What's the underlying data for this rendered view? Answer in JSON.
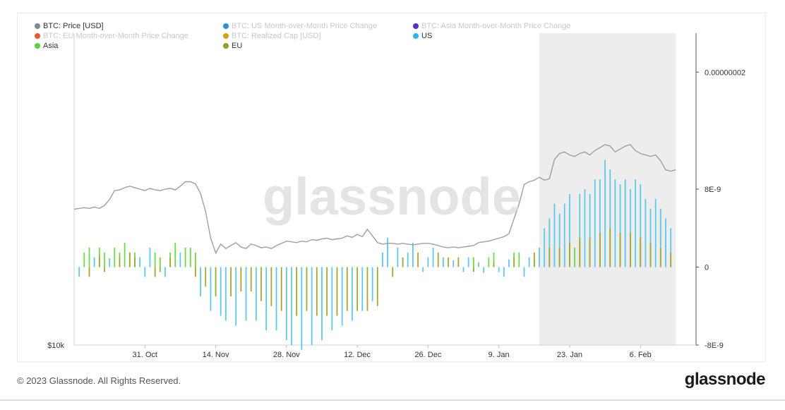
{
  "legend": [
    {
      "label": "BTC: Price [USD]",
      "color": "#7f8c8d",
      "active": true
    },
    {
      "label": "BTC: US Month-over-Month Price Change",
      "color": "#2f8fd8",
      "active": false
    },
    {
      "label": "BTC: Asia Month-over-Month Price Change",
      "color": "#4b2fcf",
      "active": false
    },
    {
      "label": "BTC: EU Month-over-Month Price Change",
      "color": "#e8562a",
      "active": false
    },
    {
      "label": "BTC: Realized Cap [USD]",
      "color": "#d4a017",
      "active": false
    },
    {
      "label": "US",
      "color": "#29b6e8",
      "active": true
    },
    {
      "label": "Asia",
      "color": "#5bd23a",
      "active": true
    },
    {
      "label": "EU",
      "color": "#8aa61c",
      "active": true
    }
  ],
  "watermark": "glassnode",
  "footer": {
    "copyright": "© 2023 Glassnode. All Rights Reserved.",
    "logo": "glassnode"
  },
  "colors": {
    "price": "#9aa0a4",
    "us": "#5ec8ec",
    "asia": "#6fd94a",
    "eu": "#a3a82e",
    "shade": "#ededed"
  },
  "chart_data": {
    "type": "bar",
    "x_tick_labels": [
      "31. Oct",
      "14. Nov",
      "28. Nov",
      "12. Dec",
      "26. Dec",
      "9. Jan",
      "23. Jan",
      "6. Feb"
    ],
    "x_ticks": [
      14,
      28,
      42,
      56,
      70,
      84,
      98,
      112
    ],
    "x_range": [
      0,
      123
    ],
    "left_axis": {
      "labels": [
        "$10k"
      ]
    },
    "right_axis": {
      "labels": [
        "0.00000002",
        "8E-9",
        "0",
        "-8E-9"
      ],
      "ticks": [
        2e-08,
        8e-09,
        0,
        -8e-09
      ],
      "range": [
        -8e-09,
        2.4e-08
      ]
    },
    "shaded_region_x": [
      92,
      119
    ],
    "price": {
      "name": "BTC: Price [USD]",
      "points": [
        [
          0,
          19150
        ],
        [
          2,
          19250
        ],
        [
          3,
          19200
        ],
        [
          4,
          19300
        ],
        [
          5,
          19200
        ],
        [
          6,
          19400
        ],
        [
          7,
          19800
        ],
        [
          8,
          20400
        ],
        [
          9,
          20450
        ],
        [
          10,
          20600
        ],
        [
          11,
          20700
        ],
        [
          12,
          20600
        ],
        [
          13,
          20500
        ],
        [
          14,
          20400
        ],
        [
          15,
          20550
        ],
        [
          16,
          20450
        ],
        [
          17,
          20400
        ],
        [
          18,
          20500
        ],
        [
          19,
          20550
        ],
        [
          20,
          20450
        ],
        [
          21,
          20700
        ],
        [
          22,
          21000
        ],
        [
          23,
          21000
        ],
        [
          24,
          20850
        ],
        [
          25,
          20200
        ],
        [
          26,
          19000
        ],
        [
          27,
          17200
        ],
        [
          28,
          16200
        ],
        [
          29,
          16800
        ],
        [
          30,
          16500
        ],
        [
          31,
          16700
        ],
        [
          32,
          16900
        ],
        [
          33,
          16600
        ],
        [
          34,
          16500
        ],
        [
          35,
          16800
        ],
        [
          36,
          16700
        ],
        [
          37,
          16550
        ],
        [
          38,
          16600
        ],
        [
          39,
          16500
        ],
        [
          40,
          16700
        ],
        [
          41,
          16850
        ],
        [
          42,
          17000
        ],
        [
          43,
          16950
        ],
        [
          44,
          16900
        ],
        [
          45,
          17000
        ],
        [
          46,
          16950
        ],
        [
          47,
          17100
        ],
        [
          48,
          17050
        ],
        [
          49,
          17150
        ],
        [
          50,
          17200
        ],
        [
          51,
          17100
        ],
        [
          52,
          17150
        ],
        [
          53,
          17200
        ],
        [
          54,
          17350
        ],
        [
          55,
          17250
        ],
        [
          56,
          17450
        ],
        [
          57,
          17300
        ],
        [
          58,
          17800
        ],
        [
          59,
          17350
        ],
        [
          60,
          16900
        ],
        [
          61,
          16800
        ],
        [
          62,
          16850
        ],
        [
          63,
          16850
        ],
        [
          64,
          16800
        ],
        [
          65,
          16850
        ],
        [
          66,
          16800
        ],
        [
          67,
          16750
        ],
        [
          68,
          16800
        ],
        [
          69,
          16850
        ],
        [
          70,
          16850
        ],
        [
          71,
          16800
        ],
        [
          72,
          16700
        ],
        [
          73,
          16600
        ],
        [
          74,
          16550
        ],
        [
          75,
          16600
        ],
        [
          76,
          16550
        ],
        [
          77,
          16600
        ],
        [
          78,
          16650
        ],
        [
          79,
          16700
        ],
        [
          80,
          16900
        ],
        [
          81,
          16950
        ],
        [
          82,
          17000
        ],
        [
          83,
          17100
        ],
        [
          84,
          17200
        ],
        [
          85,
          17300
        ],
        [
          86,
          17500
        ],
        [
          87,
          18500
        ],
        [
          88,
          19500
        ],
        [
          89,
          20800
        ],
        [
          90,
          21000
        ],
        [
          91,
          21100
        ],
        [
          92,
          21300
        ],
        [
          93,
          21100
        ],
        [
          94,
          21200
        ],
        [
          95,
          22500
        ],
        [
          96,
          22900
        ],
        [
          97,
          23000
        ],
        [
          98,
          22800
        ],
        [
          99,
          22700
        ],
        [
          100,
          22900
        ],
        [
          101,
          23000
        ],
        [
          102,
          22800
        ],
        [
          103,
          23100
        ],
        [
          104,
          23300
        ],
        [
          105,
          23500
        ],
        [
          106,
          23400
        ],
        [
          107,
          23000
        ],
        [
          108,
          23200
        ],
        [
          109,
          23400
        ],
        [
          110,
          23500
        ],
        [
          111,
          23100
        ],
        [
          112,
          22900
        ],
        [
          113,
          22800
        ],
        [
          114,
          22700
        ],
        [
          115,
          22800
        ],
        [
          116,
          22400
        ],
        [
          117,
          21800
        ],
        [
          118,
          21700
        ],
        [
          119,
          21800
        ]
      ]
    },
    "series": [
      {
        "name": "US",
        "points": [
          [
            1,
            -1e-09
          ],
          [
            4,
            1e-09
          ],
          [
            7,
            9e-10
          ],
          [
            13,
            1e-09
          ],
          [
            14,
            -1e-09
          ],
          [
            15,
            2e-09
          ],
          [
            18,
            -1e-09
          ],
          [
            21,
            1.5e-09
          ],
          [
            25,
            -3e-09
          ],
          [
            27,
            -4.5e-09
          ],
          [
            29,
            -5e-09
          ],
          [
            30,
            -5.5e-09
          ],
          [
            32,
            -6e-09
          ],
          [
            34,
            -5.5e-09
          ],
          [
            36,
            -5.5e-09
          ],
          [
            38,
            -6.5e-09
          ],
          [
            40,
            -6.5e-09
          ],
          [
            42,
            -7.5e-09
          ],
          [
            43,
            -8e-09
          ],
          [
            45,
            -8.5e-09
          ],
          [
            47,
            -8e-09
          ],
          [
            49,
            -7.5e-09
          ],
          [
            51,
            -6.5e-09
          ],
          [
            53,
            -6e-09
          ],
          [
            55,
            -5.5e-09
          ],
          [
            57,
            -4.5e-09
          ],
          [
            59,
            -3.5e-09
          ],
          [
            61,
            1.5e-09
          ],
          [
            62,
            3e-09
          ],
          [
            64,
            2e-09
          ],
          [
            66,
            1.5e-09
          ],
          [
            67,
            2.5e-09
          ],
          [
            69,
            -5e-10
          ],
          [
            70,
            1e-09
          ],
          [
            71,
            2e-09
          ],
          [
            73,
            1e-09
          ],
          [
            75,
            7e-10
          ],
          [
            77,
            -5e-10
          ],
          [
            78,
            1e-09
          ],
          [
            80,
            5e-10
          ],
          [
            81,
            -6e-10
          ],
          [
            84,
            -5e-10
          ],
          [
            85,
            -1e-09
          ],
          [
            86,
            8e-10
          ],
          [
            89,
            -1e-09
          ],
          [
            90,
            1e-09
          ],
          [
            92,
            2e-09
          ],
          [
            93,
            4e-09
          ],
          [
            94,
            5e-09
          ],
          [
            95,
            6.5e-09
          ],
          [
            96,
            5.5e-09
          ],
          [
            97,
            6.5e-09
          ],
          [
            98,
            7.5e-09
          ],
          [
            100,
            7.5e-09
          ],
          [
            101,
            8e-09
          ],
          [
            102,
            7.5e-09
          ],
          [
            103,
            9e-09
          ],
          [
            104,
            9e-09
          ],
          [
            105,
            1.1e-08
          ],
          [
            106,
            1e-08
          ],
          [
            107,
            9e-09
          ],
          [
            108,
            8.5e-09
          ],
          [
            109,
            9e-09
          ],
          [
            110,
            8e-09
          ],
          [
            111,
            9e-09
          ],
          [
            112,
            8.5e-09
          ],
          [
            113,
            7e-09
          ],
          [
            114,
            6e-09
          ],
          [
            115,
            7e-09
          ],
          [
            116,
            6e-09
          ],
          [
            117,
            5e-09
          ],
          [
            118,
            4e-09
          ]
        ]
      },
      {
        "name": "Asia",
        "points": [
          [
            2,
            1.5e-09
          ],
          [
            3,
            2e-09
          ],
          [
            5,
            2e-09
          ],
          [
            6,
            1.5e-09
          ],
          [
            8,
            2e-09
          ],
          [
            9,
            1.5e-09
          ],
          [
            10,
            2.5e-09
          ],
          [
            11,
            1.5e-09
          ],
          [
            12,
            1.5e-09
          ],
          [
            16,
            1.5e-09
          ],
          [
            17,
            1e-09
          ],
          [
            19,
            1.5e-09
          ],
          [
            20,
            2.5e-09
          ],
          [
            22,
            2e-09
          ],
          [
            23,
            2e-09
          ],
          [
            24,
            1.5e-09
          ],
          [
            79,
            1e-09
          ],
          [
            82,
            1e-09
          ],
          [
            83,
            1.5e-09
          ],
          [
            87,
            1.5e-09
          ],
          [
            88,
            1.5e-09
          ],
          [
            91,
            1.2e-09
          ],
          [
            99,
            2e-09
          ]
        ]
      },
      {
        "name": "EU",
        "points": [
          [
            3,
            -1e-09
          ],
          [
            5,
            1.2e-09
          ],
          [
            6,
            -5e-10
          ],
          [
            9,
            1e-09
          ],
          [
            11,
            1.5e-09
          ],
          [
            12,
            1e-09
          ],
          [
            16,
            -1e-09
          ],
          [
            17,
            -5e-10
          ],
          [
            19,
            1e-09
          ],
          [
            24,
            -1e-09
          ],
          [
            26,
            -2e-09
          ],
          [
            28,
            -3e-09
          ],
          [
            31,
            -3e-09
          ],
          [
            33,
            -2.5e-09
          ],
          [
            35,
            -2.5e-09
          ],
          [
            37,
            -3.5e-09
          ],
          [
            39,
            -4e-09
          ],
          [
            41,
            -4.5e-09
          ],
          [
            44,
            -5e-09
          ],
          [
            46,
            -4.5e-09
          ],
          [
            48,
            -5e-09
          ],
          [
            50,
            -5e-09
          ],
          [
            52,
            -5e-09
          ],
          [
            54,
            -4.5e-09
          ],
          [
            56,
            -4.5e-09
          ],
          [
            58,
            -4.5e-09
          ],
          [
            60,
            -4e-09
          ],
          [
            63,
            -1e-09
          ],
          [
            65,
            1e-09
          ],
          [
            68,
            1.5e-09
          ],
          [
            72,
            1.5e-09
          ],
          [
            74,
            1e-09
          ],
          [
            76,
            1e-09
          ],
          [
            79,
            -5e-10
          ],
          [
            83,
            5e-10
          ],
          [
            87,
            1e-09
          ],
          [
            91,
            1.5e-09
          ],
          [
            94,
            2e-09
          ],
          [
            96,
            2e-09
          ],
          [
            98,
            2.5e-09
          ],
          [
            100,
            3e-09
          ],
          [
            102,
            3e-09
          ],
          [
            104,
            3.5e-09
          ],
          [
            106,
            4e-09
          ],
          [
            108,
            3.5e-09
          ],
          [
            110,
            3.5e-09
          ],
          [
            112,
            3e-09
          ],
          [
            114,
            2.5e-09
          ],
          [
            116,
            2e-09
          ],
          [
            118,
            1.5e-09
          ]
        ]
      }
    ]
  }
}
